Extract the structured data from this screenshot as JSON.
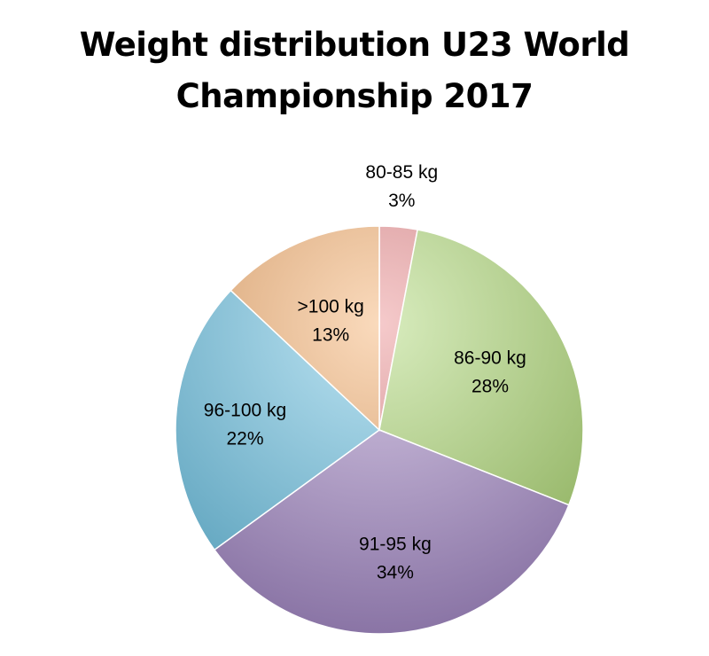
{
  "chart_data": {
    "type": "pie",
    "title_lines": [
      "Weight distribution U23 World",
      "Championship 2017"
    ],
    "slices": [
      {
        "category": "80-85 kg",
        "value": 3,
        "label": "3%",
        "color": "#e8898b"
      },
      {
        "category": "86-90 kg",
        "value": 28,
        "label": "28%",
        "color": "#a9d46e"
      },
      {
        "category": "91-95 kg",
        "value": 34,
        "label": "34%",
        "color": "#a488c6"
      },
      {
        "category": "96-100 kg",
        "value": 22,
        "label": "22%",
        "color": "#6cc3e4"
      },
      {
        "category": ">100 kg",
        "value": 13,
        "label": "13%",
        "color": "#f4ac6a"
      }
    ],
    "start_angle_deg": 0,
    "direction": "clockwise",
    "legend": "none",
    "grid": false
  }
}
